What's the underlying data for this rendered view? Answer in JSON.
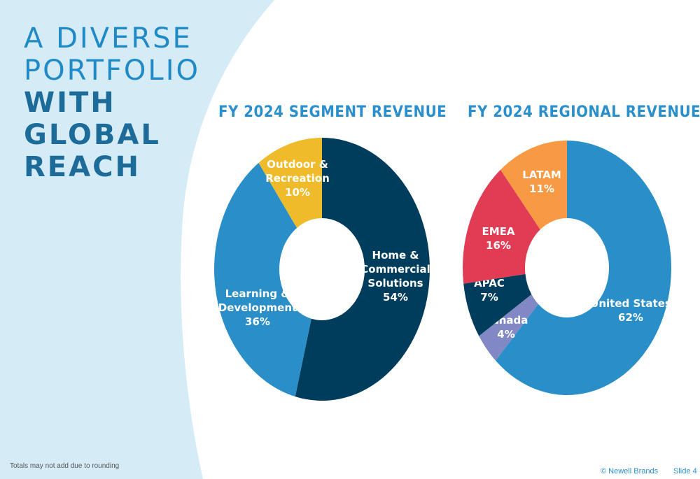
{
  "headline": {
    "line1": "A DIVERSE",
    "line2": "PORTFOLIO",
    "line3": "WITH",
    "line4": "GLOBAL",
    "line5": "REACH"
  },
  "colors": {
    "background_panel": "#d5ebf6",
    "navy": "#003d5c",
    "blue": "#2a8fc8",
    "yellow": "#efbb2a",
    "orange": "#f79a43",
    "red": "#e23c55",
    "lavender": "#8288c4"
  },
  "chart_data": [
    {
      "type": "pie",
      "title": "FY 2024 SEGMENT REVENUE",
      "slices": [
        {
          "label": [
            "Home &",
            "Commercial",
            "Solutions"
          ],
          "value": 54,
          "value_label": "54%",
          "color": "#003d5c"
        },
        {
          "label": [
            "Learning &",
            "Development"
          ],
          "value": 36,
          "value_label": "36%",
          "color": "#2a8fc8"
        },
        {
          "label": [
            "Outdoor &",
            "Recreation"
          ],
          "value": 10,
          "value_label": "10%",
          "color": "#efbb2a"
        }
      ]
    },
    {
      "type": "pie",
      "title": "FY 2024 REGIONAL REVENUE",
      "slices": [
        {
          "label": [
            "United States"
          ],
          "value": 62,
          "value_label": "62%",
          "color": "#2a8fc8"
        },
        {
          "label": [
            "Canada"
          ],
          "value": 4,
          "value_label": "4%",
          "color": "#8288c4"
        },
        {
          "label": [
            "APAC"
          ],
          "value": 7,
          "value_label": "7%",
          "color": "#003d5c"
        },
        {
          "label": [
            "EMEA"
          ],
          "value": 16,
          "value_label": "16%",
          "color": "#e23c55"
        },
        {
          "label": [
            "LATAM"
          ],
          "value": 11,
          "value_label": "11%",
          "color": "#f79a43"
        }
      ]
    }
  ],
  "footnote": "Totals may not add due to rounding",
  "footer": {
    "copyright": "© Newell Brands",
    "slide": "Slide 4"
  }
}
